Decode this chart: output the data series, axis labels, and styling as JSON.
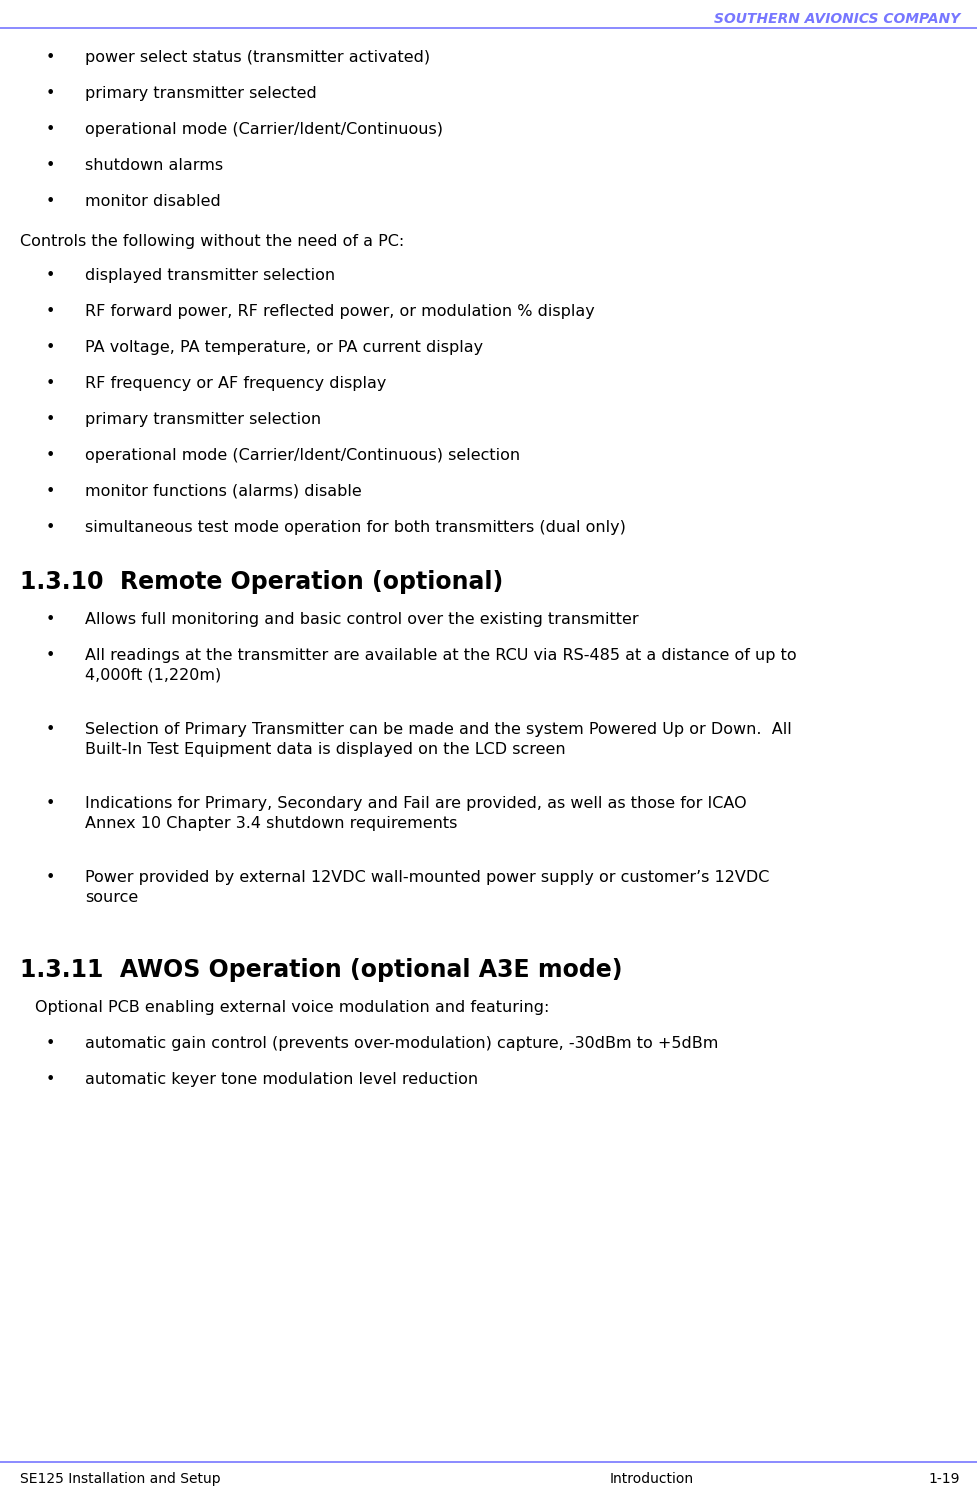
{
  "header_text": "SOUTHERN AVIONICS COMPANY",
  "header_color": "#7777ff",
  "header_line_color": "#7777ff",
  "footer_line_color": "#7777ff",
  "footer_left": "SE125 Installation and Setup",
  "footer_center": "Introduction",
  "footer_right": "1-19",
  "bg_color": "#ffffff",
  "text_color": "#000000",
  "body_font_size": 11.5,
  "section_font_size": 17,
  "bullet_items_top": [
    "power select status (transmitter activated)",
    "primary transmitter selected",
    "operational mode (Carrier/Ident/Continuous)",
    "shutdown alarms",
    "monitor disabled"
  ],
  "controls_text": "Controls the following without the need of a PC:",
  "bullet_items_controls": [
    "displayed transmitter selection",
    "RF forward power, RF reflected power, or modulation % display",
    "PA voltage, PA temperature, or PA current display",
    "RF frequency or AF frequency display",
    "primary transmitter selection",
    "operational mode (Carrier/Ident/Continuous) selection",
    "monitor functions (alarms) disable",
    "simultaneous test mode operation for both transmitters (dual only)"
  ],
  "section_1310_title": "1.3.10  Remote Operation (optional)",
  "section_1310_bullets": [
    "Allows full monitoring and basic control over the existing transmitter",
    "All readings at the transmitter are available at the RCU via RS-485 at a distance of up to\n4,000ft (1,220m)",
    "Selection of Primary Transmitter can be made and the system Powered Up or Down.  All\nBuilt-In Test Equipment data is displayed on the LCD screen",
    "Indications for Primary, Secondary and Fail are provided, as well as those for ICAO\nAnnex 10 Chapter 3.4 shutdown requirements",
    "Power provided by external 12VDC wall-mounted power supply or customer’s 12VDC\nsource"
  ],
  "section_1311_title": "1.3.11  AWOS Operation (optional A3E mode)",
  "section_1311_intro": "Optional PCB enabling external voice modulation and featuring:",
  "section_1311_bullets": [
    "automatic gain control (prevents over-modulation) capture, -30dBm to +5dBm",
    "automatic keyer tone modulation level reduction"
  ]
}
